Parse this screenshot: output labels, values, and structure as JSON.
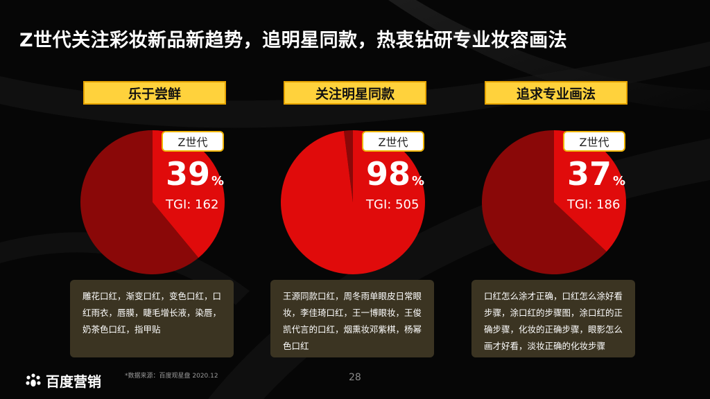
{
  "title": "Z世代关注彩妆新品新趋势，追明星同款，热衷钻研专业妆容画法",
  "chart_data": [
    {
      "type": "pie",
      "title": "乐于尝鲜",
      "tag": "Z世代",
      "value": 39,
      "value_unit": "%",
      "tgi_text": "TGI: 162",
      "tgi": 162,
      "colors": {
        "highlight": "#e00b0b",
        "rest": "#8a0808"
      },
      "description": "雕花口红，渐变口红，变色口红，口红雨衣，唇膜，睫毛增长液，染唇，奶茶色口红，指甲贴"
    },
    {
      "type": "pie",
      "title": "关注明星同款",
      "tag": "Z世代",
      "value": 98,
      "value_unit": "%",
      "tgi_text": "TGI: 505",
      "tgi": 505,
      "colors": {
        "highlight": "#e00b0b",
        "rest": "#8a0808"
      },
      "description": "王源同款口红，周冬雨单眼皮日常眼妆，李佳琦口红，王一博眼妆，王俊凯代言的口红，烟熏妆邓紫棋，杨幂色口红"
    },
    {
      "type": "pie",
      "title": "追求专业画法",
      "tag": "Z世代",
      "value": 37,
      "value_unit": "%",
      "tgi_text": "TGI: 186",
      "tgi": 186,
      "colors": {
        "highlight": "#e00b0b",
        "rest": "#8a0808"
      },
      "description": "口红怎么涂才正确，口红怎么涂好看步骤，涂口红的步骤图，涂口红的正确步骤，化妆的正确步骤，眼影怎么画才好看，淡妆正确的化妆步骤"
    }
  ],
  "footer": {
    "logo_text": "百度营销",
    "source": "*数据来源：百度观星盘 2020.12",
    "page_number": "28"
  }
}
